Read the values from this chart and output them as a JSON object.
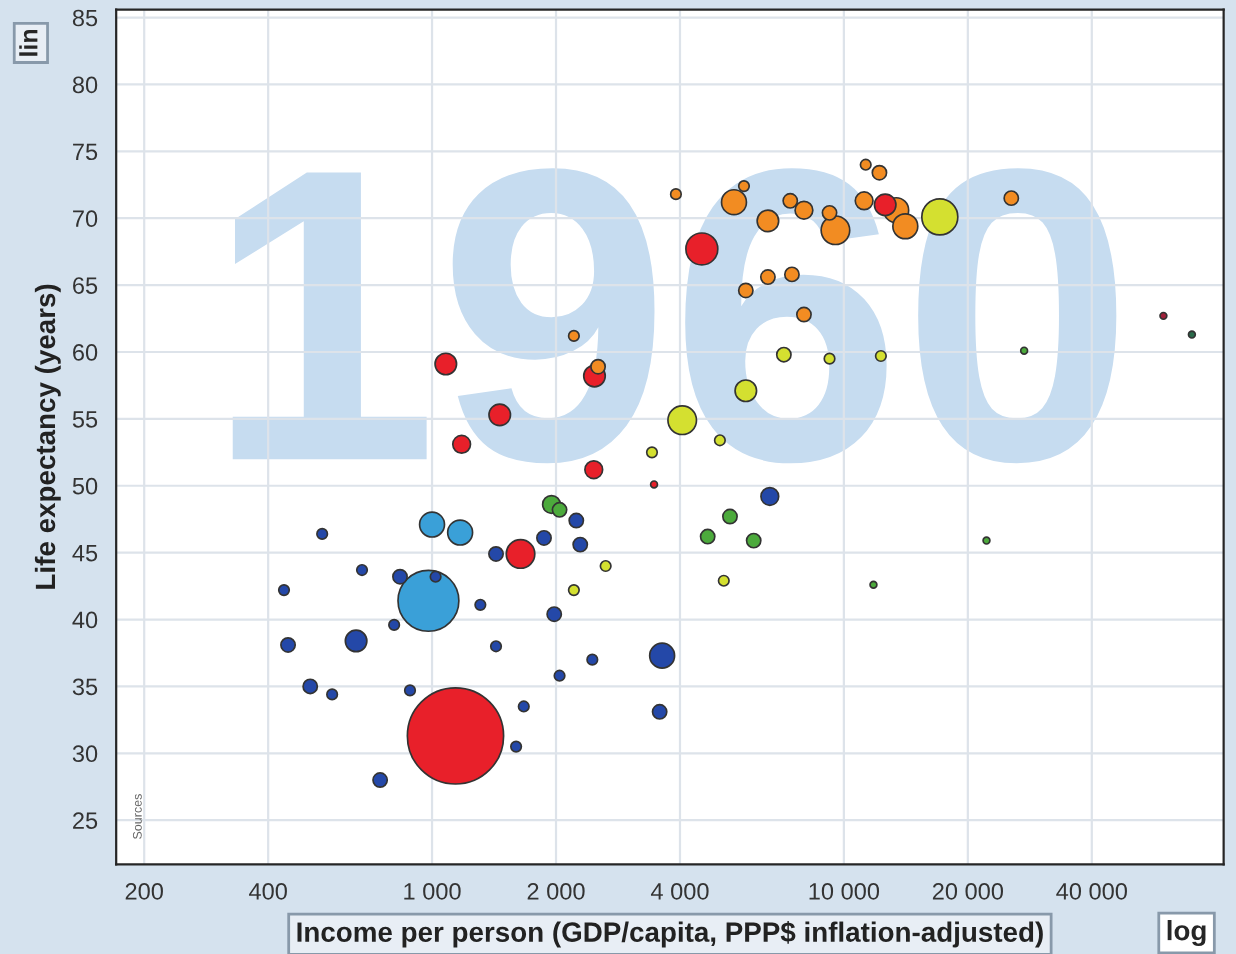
{
  "chart_data": {
    "type": "bubble",
    "xlabel": "Income per person (GDP/capita, PPP$ inflation-adjusted)",
    "ylabel": "Life expectancy (years)",
    "annotations": [
      "1960",
      "lin",
      "log",
      "Sources"
    ],
    "log": "x",
    "grid": true,
    "xlim": [
      171,
      83600
    ],
    "ylim": [
      21.7,
      85.6
    ],
    "xticks": [
      200,
      400,
      {
        "value": 1000,
        "label": "1 000"
      },
      {
        "value": 2000,
        "label": "2 000"
      },
      {
        "value": 4000,
        "label": "4 000"
      },
      {
        "value": 10000,
        "label": "10 000"
      },
      {
        "value": 20000,
        "label": "20 000"
      },
      {
        "value": 40000,
        "label": "40 000"
      }
    ],
    "yticks": [
      25,
      30,
      35,
      40,
      45,
      50,
      55,
      60,
      65,
      70,
      75,
      80,
      85
    ],
    "x": [
      1140,
      980,
      1000,
      1170,
      1640,
      1080,
      1460,
      1180,
      2470,
      2480,
      4520,
      12600,
      3620,
      3570,
      6610,
      654,
      748,
      447,
      506,
      437,
      541,
      836,
      1310,
      1430,
      1980,
      2450,
      2040,
      1670,
      1600,
      676,
      809,
      1020,
      1430,
      1870,
      2240,
      2290,
      884,
      572,
      1950,
      2040,
      5290,
      6040,
      4670,
      22200,
      27400,
      11800,
      4050,
      5780,
      17100,
      12300,
      9230,
      5000,
      3420,
      2210,
      2640,
      5110,
      5410,
      6540,
      9540,
      13400,
      14100,
      12200,
      11300,
      25500,
      3910,
      6540,
      8000,
      7480,
      5780,
      2530,
      2210,
      8000,
      9230,
      7410,
      59700,
      70000,
      3460,
      5720,
      11200,
      7150
    ],
    "values": [
      31.3,
      41.4,
      47.1,
      46.5,
      44.9,
      59.1,
      55.3,
      53.1,
      51.2,
      58.2,
      67.7,
      71.0,
      37.3,
      33.1,
      49.2,
      38.4,
      28.0,
      38.1,
      35.0,
      42.2,
      46.4,
      43.2,
      41.1,
      38.0,
      40.4,
      37.0,
      35.8,
      33.5,
      30.5,
      43.7,
      39.6,
      43.2,
      44.9,
      46.1,
      47.4,
      45.6,
      34.7,
      34.4,
      48.6,
      48.2,
      47.7,
      45.9,
      46.2,
      45.9,
      60.1,
      42.6,
      54.9,
      57.1,
      70.1,
      59.7,
      59.5,
      53.4,
      52.5,
      42.2,
      44.0,
      42.9,
      71.2,
      69.8,
      69.1,
      70.6,
      69.4,
      73.4,
      74.0,
      71.5,
      71.8,
      65.6,
      62.8,
      65.8,
      64.6,
      58.9,
      61.2,
      70.6,
      70.4,
      71.3,
      62.7,
      61.3,
      50.1,
      72.4,
      71.3,
      59.8
    ],
    "sizes": [
      1,
      0.4,
      0.067,
      0.067,
      0.088,
      0.05,
      0.05,
      0.034,
      0.034,
      0.05,
      0.11,
      0.05,
      0.067,
      0.022,
      0.034,
      0.05,
      0.022,
      0.022,
      0.022,
      0.012,
      0.012,
      0.022,
      0.012,
      0.012,
      0.022,
      0.012,
      0.012,
      0.012,
      0.012,
      0.012,
      0.012,
      0.012,
      0.022,
      0.022,
      0.022,
      0.022,
      0.012,
      0.012,
      0.034,
      0.022,
      0.022,
      0.022,
      0.022,
      0.005,
      0.005,
      0.005,
      0.088,
      0.05,
      0.14,
      0.012,
      0.012,
      0.012,
      0.012,
      0.012,
      0.012,
      0.012,
      0.067,
      0.05,
      0.088,
      0.067,
      0.067,
      0.022,
      0.012,
      0.022,
      0.012,
      0.022,
      0.022,
      0.022,
      0.022,
      0.022,
      0.012,
      0.034,
      0.022,
      0.022,
      0.005,
      0.005,
      0.005,
      0.012,
      0.034,
      0.022
    ],
    "colors": [
      "#e8202a",
      "#3aa0d8",
      "#3aa0d8",
      "#3aa0d8",
      "#e8202a",
      "#e8202a",
      "#e8202a",
      "#e8202a",
      "#e8202a",
      "#e8202a",
      "#e8202a",
      "#e8202a",
      "#2448a8",
      "#2448a8",
      "#2448a8",
      "#2448a8",
      "#2448a8",
      "#2448a8",
      "#2448a8",
      "#2448a8",
      "#2448a8",
      "#2448a8",
      "#2448a8",
      "#2448a8",
      "#2448a8",
      "#2448a8",
      "#2448a8",
      "#2448a8",
      "#2448a8",
      "#2448a8",
      "#2448a8",
      "#2448a8",
      "#2448a8",
      "#2448a8",
      "#2448a8",
      "#2448a8",
      "#2448a8",
      "#2448a8",
      "#4caa3c",
      "#4caa3c",
      "#4caa3c",
      "#4caa3c",
      "#4caa3c",
      "#4caa3c",
      "#4caa3c",
      "#4caa3c",
      "#d4e030",
      "#d4e030",
      "#d4e030",
      "#d4e030",
      "#d4e030",
      "#d4e030",
      "#d4e030",
      "#d4e030",
      "#d4e030",
      "#d4e030",
      "#f28c22",
      "#f28c22",
      "#f28c22",
      "#f28c22",
      "#f28c22",
      "#f28c22",
      "#f28c22",
      "#f28c22",
      "#f28c22",
      "#f28c22",
      "#f28c22",
      "#f28c22",
      "#f28c22",
      "#f28c22",
      "#f28c22",
      "#f28c22",
      "#f28c22",
      "#f28c22",
      "#a0203a",
      "#2a6a4a",
      "#e8202a",
      "#f28c22",
      "#f28c22",
      "#d4e030"
    ]
  }
}
